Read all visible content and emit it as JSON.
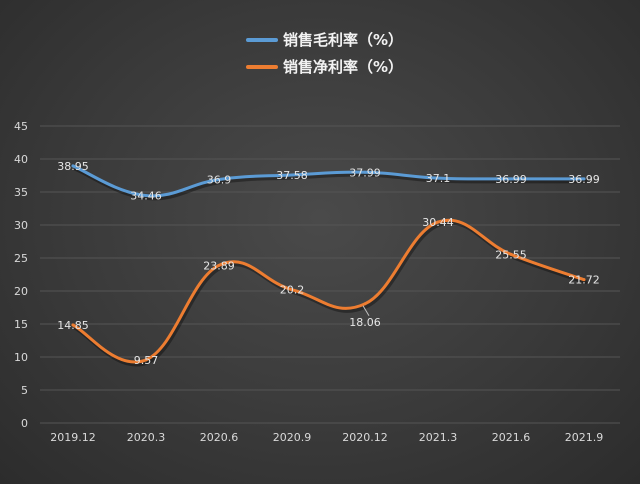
{
  "chart_data": {
    "type": "line",
    "categories": [
      "2019.12",
      "2020.3",
      "2020.6",
      "2020.9",
      "2020.12",
      "2021.3",
      "2021.6",
      "2021.9"
    ],
    "series": [
      {
        "name": "销售毛利率（%）",
        "color": "#5b9bd5",
        "values": [
          38.95,
          34.46,
          36.9,
          37.58,
          37.99,
          37.1,
          36.99,
          36.99
        ]
      },
      {
        "name": "销售净利率（%）",
        "color": "#ed7d31",
        "values": [
          14.85,
          9.57,
          23.89,
          20.2,
          18.06,
          30.44,
          25.55,
          21.72
        ]
      }
    ],
    "ylim": [
      0,
      45
    ],
    "yticks": [
      0,
      5,
      10,
      15,
      20,
      25,
      30,
      35,
      40,
      45
    ],
    "grid": true,
    "legend_position": "top"
  }
}
